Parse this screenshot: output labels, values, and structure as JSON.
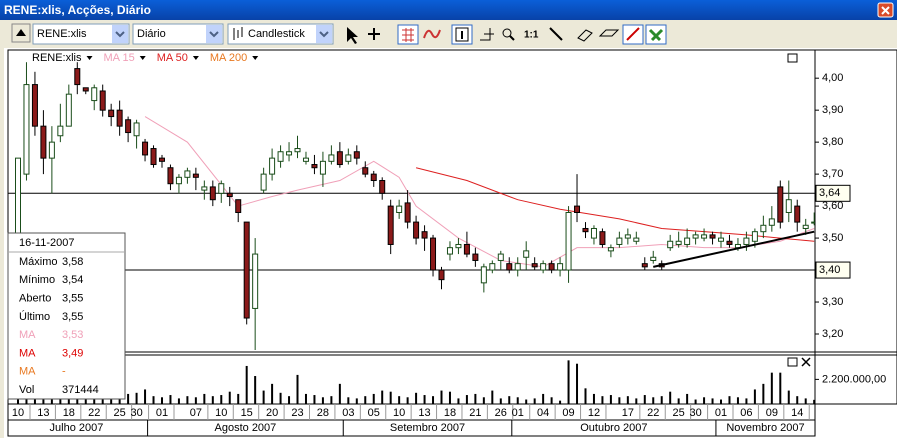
{
  "window": {
    "title": "RENE:xlis, Acções, Diário"
  },
  "toolbar": {
    "symbol": "RENE:xlis",
    "period": "Diário",
    "chart_style": "Candlestick",
    "zoom": "1:1"
  },
  "info_panel": {
    "date": "16-11-2007",
    "rows": [
      {
        "label": "Máximo",
        "value": "3,58",
        "color": "#000000"
      },
      {
        "label": "Mínimo",
        "value": "3,54",
        "color": "#000000"
      },
      {
        "label": "Aberto",
        "value": "3,55",
        "color": "#000000"
      },
      {
        "label": "Último",
        "value": "3,55",
        "color": "#000000"
      },
      {
        "label": "MA",
        "value": "3,53",
        "color": "#f0a0b8"
      },
      {
        "label": "MA",
        "value": "3,49",
        "color": "#dd0000"
      },
      {
        "label": "MA",
        "value": "-",
        "color": "#e87820"
      },
      {
        "label": "Vol",
        "value": "371444",
        "color": "#000000"
      }
    ]
  },
  "chart_data": {
    "type": "candlestick",
    "name": "RENE:xlis",
    "up_color": "#ffffff",
    "down_color": "#8b1a1a",
    "outline_color": "#1a4d1a",
    "open": [
      3.45,
      3.7,
      3.98,
      3.85,
      3.75,
      3.82,
      3.85,
      4.03,
      3.97,
      3.93,
      3.96,
      3.9,
      3.9,
      3.87,
      3.82,
      3.8,
      3.78,
      3.75,
      3.72,
      3.67,
      3.69,
      3.7,
      3.65,
      3.66,
      3.64,
      3.64,
      3.62,
      3.55,
      3.28,
      3.65,
      3.7,
      3.74,
      3.76,
      3.77,
      3.74,
      3.73,
      3.7,
      3.74,
      3.77,
      3.74,
      3.77,
      3.72,
      3.7,
      3.68,
      3.6,
      3.58,
      3.61,
      3.55,
      3.52,
      3.5,
      3.4,
      3.45,
      3.47,
      3.48,
      3.45,
      3.36,
      3.4,
      3.43,
      3.42,
      3.4,
      3.44,
      3.42,
      3.4,
      3.42,
      3.4,
      3.4,
      3.6,
      3.53,
      3.5,
      3.52,
      3.46,
      3.48,
      3.5,
      3.49,
      3.42,
      3.43,
      3.42,
      3.47,
      3.48,
      3.48,
      3.5,
      3.5,
      3.51,
      3.49,
      3.49,
      3.47,
      3.48,
      3.49,
      3.52,
      3.54,
      3.66,
      3.58,
      3.6,
      3.53,
      3.55
    ],
    "high": [
      3.75,
      4.05,
      4.02,
      3.9,
      3.85,
      3.92,
      3.98,
      4.05,
      3.97,
      3.98,
      3.98,
      3.92,
      3.93,
      3.88,
      3.87,
      3.81,
      3.79,
      3.76,
      3.73,
      3.7,
      3.72,
      3.72,
      3.68,
      3.68,
      3.68,
      3.66,
      3.62,
      3.55,
      3.5,
      3.72,
      3.78,
      3.79,
      3.8,
      3.82,
      3.77,
      3.76,
      3.77,
      3.79,
      3.8,
      3.78,
      3.79,
      3.74,
      3.71,
      3.69,
      3.62,
      3.62,
      3.65,
      3.57,
      3.54,
      3.51,
      3.41,
      3.49,
      3.5,
      3.52,
      3.47,
      3.42,
      3.43,
      3.46,
      3.44,
      3.44,
      3.49,
      3.44,
      3.43,
      3.43,
      3.44,
      3.6,
      3.7,
      3.55,
      3.54,
      3.53,
      3.48,
      3.52,
      3.53,
      3.52,
      3.44,
      3.46,
      3.43,
      3.51,
      3.52,
      3.53,
      3.52,
      3.53,
      3.52,
      3.52,
      3.51,
      3.5,
      3.52,
      3.53,
      3.57,
      3.6,
      3.68,
      3.68,
      3.62,
      3.56,
      3.58
    ],
    "low": [
      3.4,
      3.68,
      3.82,
      3.7,
      3.64,
      3.8,
      3.85,
      3.95,
      3.95,
      3.9,
      3.88,
      3.85,
      3.82,
      3.8,
      3.78,
      3.74,
      3.72,
      3.72,
      3.65,
      3.64,
      3.67,
      3.65,
      3.62,
      3.6,
      3.61,
      3.6,
      3.55,
      3.23,
      3.15,
      3.64,
      3.68,
      3.72,
      3.74,
      3.75,
      3.73,
      3.7,
      3.66,
      3.73,
      3.72,
      3.73,
      3.73,
      3.69,
      3.66,
      3.62,
      3.45,
      3.56,
      3.53,
      3.48,
      3.46,
      3.38,
      3.34,
      3.43,
      3.45,
      3.44,
      3.41,
      3.33,
      3.39,
      3.4,
      3.39,
      3.38,
      3.4,
      3.4,
      3.39,
      3.39,
      3.38,
      3.36,
      3.55,
      3.5,
      3.48,
      3.47,
      3.44,
      3.47,
      3.48,
      3.48,
      3.4,
      3.42,
      3.4,
      3.46,
      3.47,
      3.47,
      3.48,
      3.49,
      3.48,
      3.47,
      3.47,
      3.46,
      3.46,
      3.47,
      3.5,
      3.52,
      3.53,
      3.55,
      3.52,
      3.51,
      3.54
    ],
    "close": [
      3.75,
      3.98,
      3.85,
      3.75,
      3.8,
      3.85,
      3.95,
      3.98,
      3.96,
      3.97,
      3.9,
      3.88,
      3.85,
      3.83,
      3.86,
      3.76,
      3.73,
      3.74,
      3.67,
      3.69,
      3.71,
      3.69,
      3.66,
      3.62,
      3.67,
      3.63,
      3.58,
      3.25,
      3.45,
      3.7,
      3.75,
      3.77,
      3.77,
      3.78,
      3.75,
      3.72,
      3.74,
      3.76,
      3.73,
      3.76,
      3.75,
      3.7,
      3.68,
      3.64,
      3.48,
      3.6,
      3.55,
      3.5,
      3.5,
      3.4,
      3.37,
      3.47,
      3.48,
      3.45,
      3.43,
      3.41,
      3.42,
      3.45,
      3.4,
      3.42,
      3.46,
      3.41,
      3.42,
      3.4,
      3.42,
      3.58,
      3.58,
      3.52,
      3.53,
      3.48,
      3.47,
      3.5,
      3.51,
      3.5,
      3.41,
      3.44,
      3.41,
      3.49,
      3.49,
      3.5,
      3.51,
      3.51,
      3.5,
      3.5,
      3.48,
      3.48,
      3.5,
      3.52,
      3.54,
      3.56,
      3.55,
      3.62,
      3.55,
      3.54,
      3.55
    ],
    "ylim": [
      3.15,
      4.06
    ],
    "yticks": [
      {
        "value": 3.2,
        "label": "3,20"
      },
      {
        "value": 3.3,
        "label": "3,30"
      },
      {
        "value": 3.5,
        "label": "3,50"
      },
      {
        "value": 3.6,
        "label": "3,60"
      },
      {
        "value": 3.7,
        "label": "3,70"
      },
      {
        "value": 3.8,
        "label": "3,80"
      },
      {
        "value": 3.9,
        "label": "3,90"
      },
      {
        "value": 4.0,
        "label": "4,00"
      }
    ],
    "moving_averages": [
      {
        "name": "MA 15",
        "color": "#f0a0b8",
        "x": [
          15,
          20,
          26,
          30,
          33,
          38,
          42,
          45,
          47,
          52,
          57,
          62,
          66,
          71,
          76,
          81,
          85,
          90,
          94
        ],
        "values": [
          3.88,
          3.8,
          3.6,
          3.63,
          3.65,
          3.68,
          3.74,
          3.69,
          3.6,
          3.5,
          3.43,
          3.41,
          3.47,
          3.47,
          3.48,
          3.47,
          3.47,
          3.49,
          3.53
        ]
      },
      {
        "name": "MA 50",
        "color": "#dd2020",
        "x": [
          47,
          53,
          59,
          64,
          71,
          76,
          81,
          86,
          90,
          94
        ],
        "values": [
          3.72,
          3.68,
          3.62,
          3.59,
          3.56,
          3.53,
          3.52,
          3.51,
          3.5,
          3.49
        ]
      },
      {
        "name": "MA 200",
        "color": "#e87820",
        "x": [],
        "values": []
      }
    ],
    "level_lines": [
      {
        "value": 3.64,
        "label": "3,64"
      },
      {
        "value": 3.4,
        "label": "3,40"
      }
    ],
    "trend_line": {
      "x": [
        75,
        94
      ],
      "values": [
        3.41,
        3.52
      ]
    },
    "xticks": [
      {
        "value": 0,
        "label": "10"
      },
      {
        "value": 3,
        "label": "13"
      },
      {
        "value": 6,
        "label": "18"
      },
      {
        "value": 9,
        "label": "22"
      },
      {
        "value": 12,
        "label": "25"
      },
      {
        "value": 14,
        "label": "30"
      },
      {
        "value": 17,
        "label": "01"
      },
      {
        "value": 21,
        "label": "07"
      },
      {
        "value": 24,
        "label": "10"
      },
      {
        "value": 27,
        "label": "15"
      },
      {
        "value": 30,
        "label": "20"
      },
      {
        "value": 33,
        "label": "23"
      },
      {
        "value": 36,
        "label": "28"
      },
      {
        "value": 39,
        "label": "03"
      },
      {
        "value": 42,
        "label": "05"
      },
      {
        "value": 45,
        "label": "10"
      },
      {
        "value": 48,
        "label": "13"
      },
      {
        "value": 51,
        "label": "18"
      },
      {
        "value": 54,
        "label": "21"
      },
      {
        "value": 57,
        "label": "26"
      },
      {
        "value": 59,
        "label": "01"
      },
      {
        "value": 62,
        "label": "04"
      },
      {
        "value": 65,
        "label": "09"
      },
      {
        "value": 68,
        "label": "12"
      },
      {
        "value": 72,
        "label": "17"
      },
      {
        "value": 75,
        "label": "22"
      },
      {
        "value": 78,
        "label": "25"
      },
      {
        "value": 80,
        "label": "30"
      },
      {
        "value": 83,
        "label": "01"
      },
      {
        "value": 86,
        "label": "06"
      },
      {
        "value": 89,
        "label": "09"
      },
      {
        "value": 92,
        "label": "14"
      }
    ],
    "months": [
      {
        "label": "Julho 2007",
        "xlim": [
          -1.5,
          15.3
        ]
      },
      {
        "label": "Agosto 2007",
        "xlim": [
          15.3,
          38.4
        ]
      },
      {
        "label": "Setembro 2007",
        "xlim": [
          38.4,
          58.3
        ]
      },
      {
        "label": "Outubro 2007",
        "xlim": [
          58.3,
          82.4
        ]
      },
      {
        "label": "Novembro 2007",
        "xlim": [
          82.4,
          94.1
        ]
      }
    ],
    "volume": {
      "color": "#000000",
      "values": [
        1500000,
        900000,
        1200000,
        700000,
        600000,
        900000,
        800000,
        1100000,
        600000,
        500000,
        700000,
        800000,
        600000,
        900000,
        1000000,
        1300000,
        700000,
        600000,
        800000,
        500000,
        700000,
        600000,
        900000,
        700000,
        800000,
        1100000,
        900000,
        3400000,
        2500000,
        1200000,
        1800000,
        1000000,
        700000,
        2600000,
        900000,
        800000,
        600000,
        700000,
        1800000,
        600000,
        500000,
        700000,
        900000,
        1200000,
        1100000,
        700000,
        600000,
        1000000,
        800000,
        700000,
        1200000,
        1100000,
        500000,
        800000,
        900000,
        600000,
        1200000,
        500000,
        700000,
        600000,
        400000,
        500000,
        900000,
        600000,
        300000,
        3900000,
        3600000,
        1400000,
        900000,
        700000,
        800000,
        600000,
        700000,
        500000,
        800000,
        600000,
        700000,
        1100000,
        500000,
        900000,
        400000,
        600000,
        500000,
        400000,
        700000,
        600000,
        500000,
        1300000,
        1800000,
        2800000,
        2800000,
        1200000,
        700000,
        500000,
        371444
      ],
      "ylim": [
        0,
        4200000
      ],
      "yticks": [
        {
          "value": 2200000,
          "label": "2.200.000,00"
        }
      ]
    }
  }
}
